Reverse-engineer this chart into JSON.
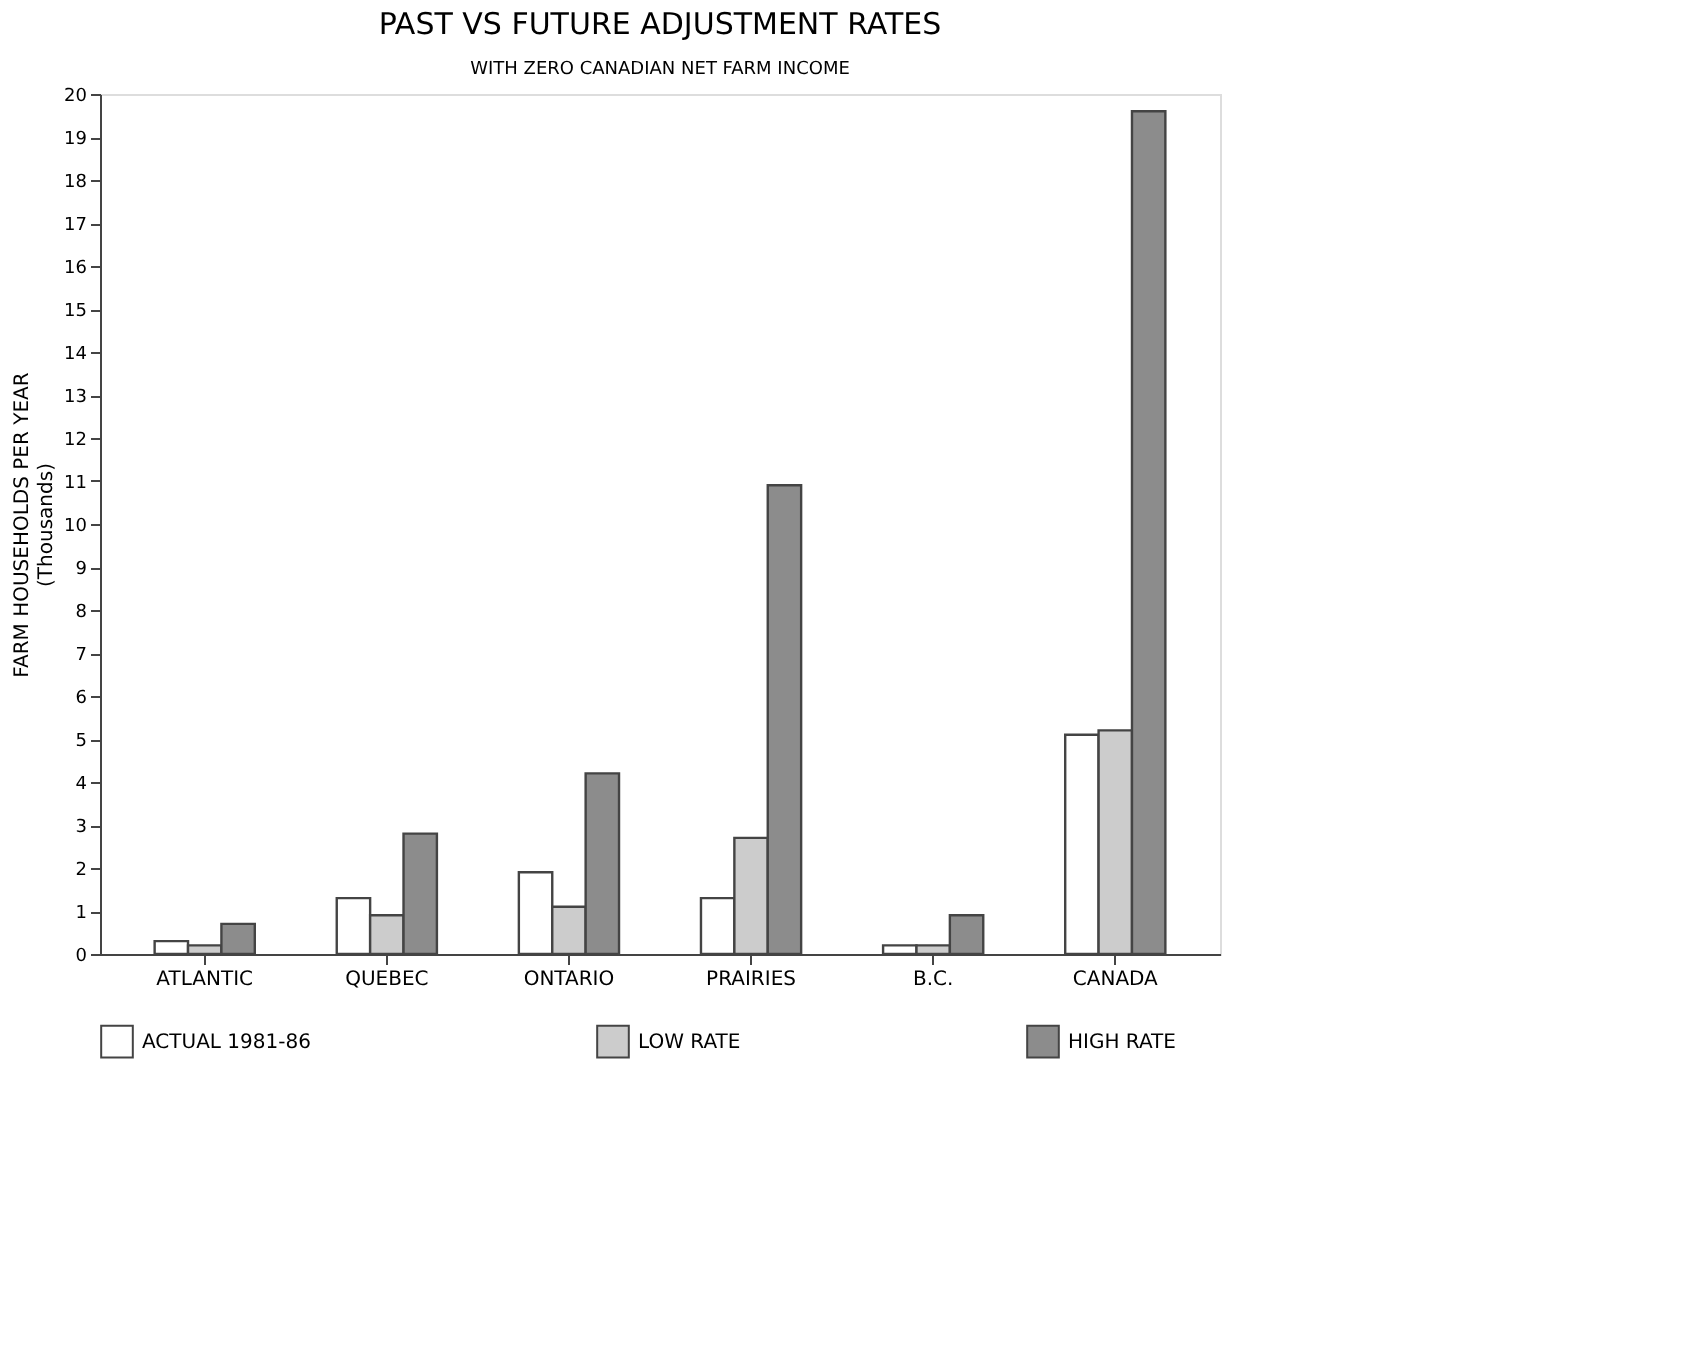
{
  "chart_data": {
    "type": "bar",
    "title": "PAST VS FUTURE ADJUSTMENT RATES",
    "subtitle": "WITH ZERO CANADIAN NET FARM INCOME",
    "ylabel": "FARM HOUSEHOLDS PER YEAR\n(Thousands)",
    "categories": [
      "ATLANTIC",
      "QUEBEC",
      "ONTARIO",
      "PRAIRIES",
      "B.C.",
      "CANADA"
    ],
    "series": [
      {
        "name": "ACTUAL 1981-86",
        "color": "#ffffff",
        "values": [
          0.3,
          1.3,
          1.9,
          1.3,
          0.2,
          5.1
        ]
      },
      {
        "name": "LOW RATE",
        "color": "#cccccc",
        "values": [
          0.2,
          0.9,
          1.1,
          2.7,
          0.2,
          5.2
        ]
      },
      {
        "name": "HIGH RATE",
        "color": "#8c8c8c",
        "values": [
          0.7,
          2.8,
          4.2,
          10.9,
          0.9,
          19.6
        ]
      }
    ],
    "ylim": [
      0,
      20
    ],
    "yticks": [
      0,
      1,
      2,
      3,
      4,
      5,
      6,
      7,
      8,
      9,
      10,
      11,
      12,
      13,
      14,
      15,
      16,
      17,
      18,
      19,
      20
    ],
    "grid": false,
    "legend": "bottom"
  }
}
